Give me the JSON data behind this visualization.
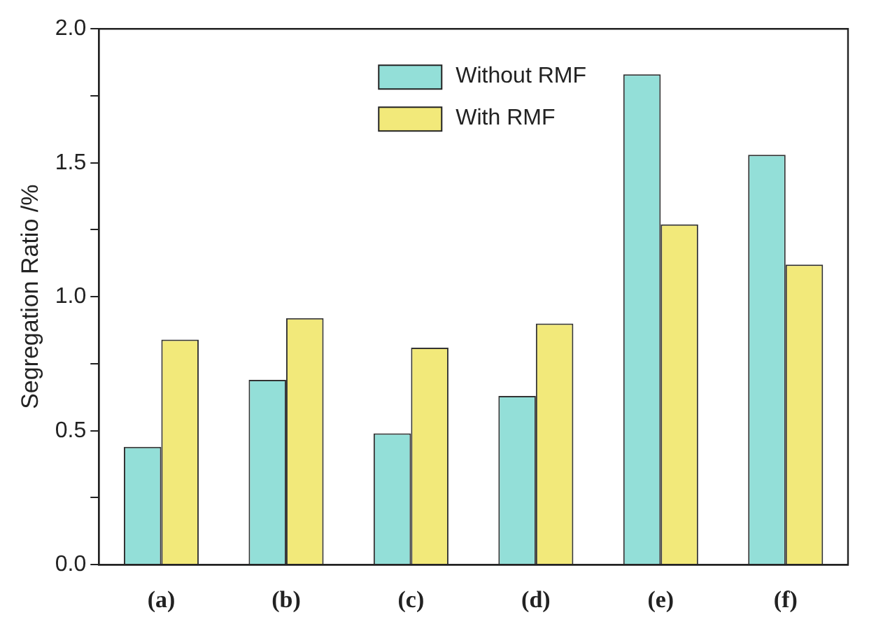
{
  "chart_data": {
    "type": "bar",
    "ylabel": "Segregation Ratio /%",
    "categories": [
      "(a)",
      "(b)",
      "(c)",
      "(d)",
      "(e)",
      "(f)"
    ],
    "series": [
      {
        "name": "Without RMF",
        "color": "#93dfd8",
        "values": [
          0.44,
          0.69,
          0.49,
          0.63,
          1.83,
          1.53
        ]
      },
      {
        "name": "With RMF",
        "color": "#f2e97a",
        "values": [
          0.84,
          0.92,
          0.81,
          0.9,
          1.27,
          1.12
        ]
      }
    ],
    "ylim": [
      0,
      2.0
    ],
    "yticks": [
      {
        "value": 0,
        "label": "0.0"
      },
      {
        "value": 0.25,
        "label": null
      },
      {
        "value": 0.5,
        "label": "0.5"
      },
      {
        "value": 0.75,
        "label": null
      },
      {
        "value": 1.0,
        "label": "1.0"
      },
      {
        "value": 1.25,
        "label": null
      },
      {
        "value": 1.5,
        "label": "1.5"
      },
      {
        "value": 1.75,
        "label": null
      },
      {
        "value": 2.0,
        "label": "2.0"
      }
    ],
    "grid": false,
    "legend": "top"
  }
}
